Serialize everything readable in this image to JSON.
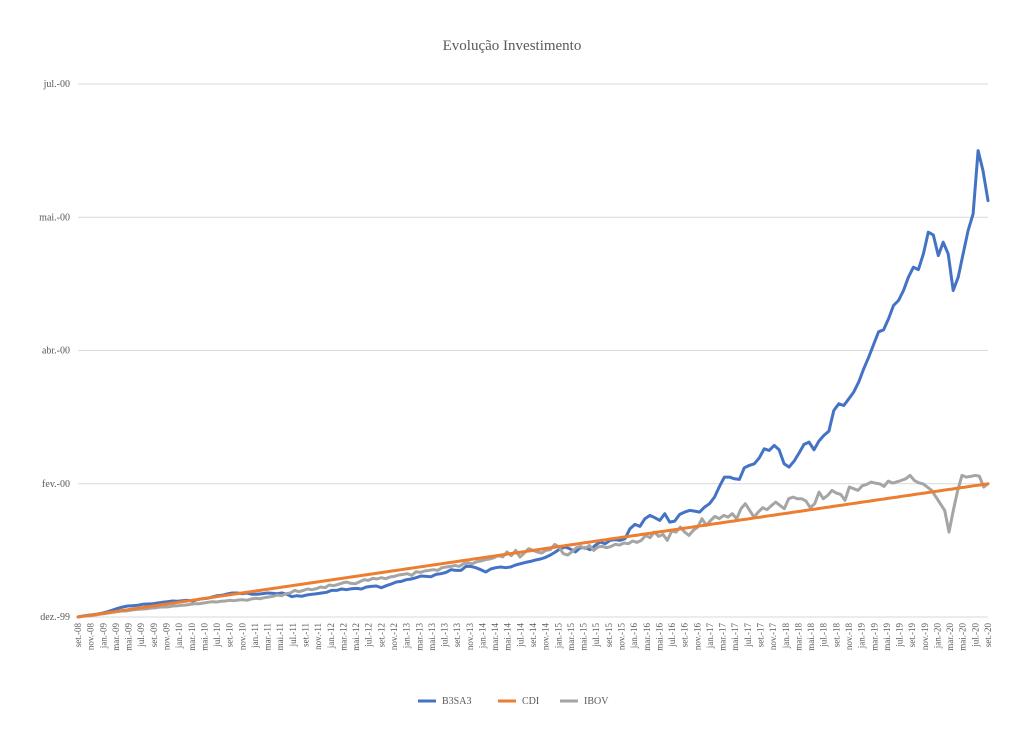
{
  "chart_data": {
    "type": "line",
    "title": "Evolução Investimento",
    "xlabel": "",
    "ylabel": "",
    "y_ticks": [
      "dez.-99",
      "fev.-00",
      "abr.-00",
      "mai.-00",
      "jul.-00"
    ],
    "y_tick_values": [
      0,
      4,
      8,
      12,
      16
    ],
    "ylim": [
      0,
      16
    ],
    "grid": true,
    "legend_position": "bottom",
    "x_tick_labels": [
      "set.-08",
      "nov.-08",
      "jan.-09",
      "mar.-09",
      "mai.-09",
      "jul.-09",
      "set.-09",
      "nov.-09",
      "jan.-10",
      "mar.-10",
      "mai.-10",
      "jul.-10",
      "set.-10",
      "nov.-10",
      "jan.-11",
      "mar.-11",
      "mai.-11",
      "jul.-11",
      "set.-11",
      "nov.-11",
      "jan.-12",
      "mar.-12",
      "mai.-12",
      "jul.-12",
      "set.-12",
      "nov.-12",
      "jan.-13",
      "mar.-13",
      "mai.-13",
      "jul.-13",
      "set.-13",
      "nov.-13",
      "jan.-14",
      "mar.-14",
      "mai.-14",
      "jul.-14",
      "set.-14",
      "nov.-14",
      "jan.-15",
      "mar.-15",
      "mai.-15",
      "jul.-15",
      "set.-15",
      "nov.-15",
      "jan.-16",
      "mar.-16",
      "mai.-16",
      "jul.-16",
      "set.-16",
      "nov.-16",
      "jan.-17",
      "mar.-17",
      "mai.-17",
      "jul.-17",
      "set.-17",
      "nov.-17",
      "jan.-18",
      "mar.-18",
      "mai.-18",
      "jul.-18",
      "set.-18",
      "nov.-18",
      "jan.-19",
      "mar.-19",
      "mai.-19",
      "jul.-19",
      "set.-19",
      "nov.-19",
      "jan.-20",
      "mar.-20",
      "mai.-20",
      "jul.-20",
      "set.-20"
    ],
    "series": [
      {
        "name": "B3SA3",
        "color": "#4472C4",
        "values": [
          0.0,
          0.03,
          0.05,
          0.07,
          0.09,
          0.12,
          0.16,
          0.21,
          0.26,
          0.3,
          0.33,
          0.34,
          0.35,
          0.38,
          0.39,
          0.4,
          0.42,
          0.44,
          0.46,
          0.48,
          0.47,
          0.49,
          0.5,
          0.48,
          0.52,
          0.55,
          0.56,
          0.6,
          0.64,
          0.65,
          0.69,
          0.72,
          0.72,
          0.7,
          0.72,
          0.68,
          0.68,
          0.7,
          0.72,
          0.71,
          0.7,
          0.72,
          0.68,
          0.61,
          0.64,
          0.62,
          0.66,
          0.68,
          0.7,
          0.72,
          0.74,
          0.8,
          0.8,
          0.84,
          0.82,
          0.85,
          0.86,
          0.84,
          0.9,
          0.92,
          0.93,
          0.88,
          0.94,
          0.99,
          1.05,
          1.07,
          1.12,
          1.14,
          1.18,
          1.23,
          1.22,
          1.21,
          1.28,
          1.3,
          1.34,
          1.42,
          1.4,
          1.4,
          1.52,
          1.52,
          1.48,
          1.42,
          1.35,
          1.44,
          1.48,
          1.5,
          1.48,
          1.5,
          1.56,
          1.6,
          1.64,
          1.67,
          1.71,
          1.74,
          1.79,
          1.86,
          1.95,
          2.05,
          2.1,
          2.04,
          1.95,
          2.08,
          2.08,
          2.02,
          2.15,
          2.25,
          2.2,
          2.3,
          2.32,
          2.3,
          2.35,
          2.65,
          2.78,
          2.72,
          2.95,
          3.05,
          2.98,
          2.9,
          3.1,
          2.85,
          2.88,
          3.08,
          3.15,
          3.2,
          3.18,
          3.15,
          3.3,
          3.4,
          3.6,
          3.92,
          4.2,
          4.2,
          4.15,
          4.13,
          4.48,
          4.55,
          4.6,
          4.78,
          5.05,
          5.0,
          5.15,
          5.02,
          4.6,
          4.5,
          4.68,
          4.92,
          5.18,
          5.25,
          5.02,
          5.28,
          5.45,
          5.58,
          6.2,
          6.4,
          6.35,
          6.55,
          6.75,
          7.05,
          7.45,
          7.8,
          8.18,
          8.56,
          8.62,
          8.95,
          9.35,
          9.5,
          9.8,
          10.2,
          10.5,
          10.43,
          10.9,
          11.55,
          11.47,
          10.85,
          11.25,
          10.9,
          9.8,
          10.2,
          10.9,
          11.6,
          12.1,
          14.0,
          13.4,
          12.5
        ]
      },
      {
        "name": "CDI",
        "color": "#ED7D31",
        "values": [
          0.0,
          0.02,
          0.04,
          0.06,
          0.08,
          0.1,
          0.12,
          0.14,
          0.16,
          0.18,
          0.2,
          0.22,
          0.24,
          0.26,
          0.28,
          0.3,
          0.32,
          0.34,
          0.36,
          0.38,
          0.4,
          0.42,
          0.44,
          0.46,
          0.48,
          0.5,
          0.52,
          0.54,
          0.56,
          0.58,
          0.6,
          0.62,
          0.64,
          0.66,
          0.68,
          0.7,
          0.72,
          0.74,
          0.76,
          0.78,
          0.8,
          0.82,
          0.84,
          0.86,
          0.88,
          0.9,
          0.92,
          0.94,
          0.96,
          0.98,
          1.0,
          1.02,
          1.04,
          1.06,
          1.08,
          1.1,
          1.12,
          1.14,
          1.16,
          1.18,
          1.2,
          1.22,
          1.24,
          1.26,
          1.28,
          1.3,
          1.32,
          1.34,
          1.36,
          1.38,
          1.4,
          1.42,
          1.44,
          1.46,
          1.48,
          1.5,
          1.52,
          1.54,
          1.56,
          1.58,
          1.6,
          1.62,
          1.64,
          1.66,
          1.68,
          1.7,
          1.72,
          1.74,
          1.76,
          1.78,
          1.8,
          1.82,
          1.84,
          1.86,
          1.88,
          1.9,
          1.92,
          1.94,
          1.96,
          1.98,
          2.0,
          2.02,
          2.04,
          2.06,
          2.08,
          2.1,
          2.12,
          2.14,
          2.16,
          2.18,
          2.2,
          2.22,
          2.24,
          2.26,
          2.28,
          2.3,
          2.32,
          2.34,
          2.36,
          2.38,
          2.4,
          2.42,
          2.44,
          2.46,
          2.48,
          2.5,
          2.52,
          2.54,
          2.56,
          2.58,
          2.6,
          2.62,
          2.64,
          2.66,
          2.68,
          2.7,
          2.72,
          2.74,
          2.76,
          2.78,
          2.8,
          2.82,
          2.84,
          2.86,
          2.88,
          2.9,
          2.92,
          2.94,
          2.96,
          2.98,
          3.0,
          3.02,
          3.04,
          3.06,
          3.08,
          3.1,
          3.12,
          3.14,
          3.16,
          3.18,
          3.2,
          3.22,
          3.24,
          3.26,
          3.28,
          3.3,
          3.32,
          3.34,
          3.36,
          3.38,
          3.4,
          3.42,
          3.44,
          3.46,
          3.48,
          3.5,
          3.52,
          3.54,
          3.56,
          3.58,
          3.6,
          3.62,
          3.64,
          3.66,
          3.68,
          3.7,
          3.72,
          3.74,
          3.76,
          3.78,
          3.8,
          3.82,
          3.84,
          3.86,
          3.88,
          3.9,
          3.92,
          3.94,
          3.96,
          3.98,
          4.0
        ]
      },
      {
        "name": "IBOV",
        "color": "#A5A5A5",
        "values": [
          0.0,
          0.02,
          0.03,
          0.04,
          0.06,
          0.08,
          0.1,
          0.12,
          0.14,
          0.16,
          0.18,
          0.18,
          0.2,
          0.22,
          0.23,
          0.24,
          0.25,
          0.27,
          0.28,
          0.3,
          0.3,
          0.31,
          0.33,
          0.34,
          0.35,
          0.36,
          0.38,
          0.4,
          0.4,
          0.42,
          0.44,
          0.46,
          0.45,
          0.47,
          0.48,
          0.5,
          0.49,
          0.51,
          0.52,
          0.5,
          0.54,
          0.56,
          0.55,
          0.58,
          0.6,
          0.62,
          0.66,
          0.64,
          0.7,
          0.72,
          0.8,
          0.76,
          0.8,
          0.84,
          0.82,
          0.85,
          0.9,
          0.88,
          0.96,
          0.94,
          0.98,
          1.02,
          1.05,
          1.01,
          1.0,
          1.06,
          1.12,
          1.1,
          1.16,
          1.14,
          1.18,
          1.15,
          1.2,
          1.22,
          1.26,
          1.28,
          1.3,
          1.25,
          1.36,
          1.34,
          1.38,
          1.4,
          1.42,
          1.4,
          1.48,
          1.5,
          1.52,
          1.55,
          1.52,
          1.6,
          1.62,
          1.6,
          1.66,
          1.68,
          1.72,
          1.74,
          1.78,
          1.85,
          1.8,
          1.95,
          1.84,
          2.0,
          1.8,
          1.92,
          2.05,
          2.0,
          1.95,
          1.92,
          2.0,
          2.02,
          2.18,
          2.1,
          1.9,
          1.86,
          1.96,
          2.08,
          2.12,
          2.05,
          2.15,
          2.0,
          2.1,
          2.12,
          2.08,
          2.12,
          2.18,
          2.16,
          2.22,
          2.2,
          2.28,
          2.24,
          2.3,
          2.45,
          2.38,
          2.55,
          2.42,
          2.48,
          2.3,
          2.58,
          2.55,
          2.7,
          2.55,
          2.45,
          2.6,
          2.7,
          2.95,
          2.75,
          2.9,
          3.02,
          2.95,
          3.05,
          3.0,
          3.1,
          2.95,
          3.25,
          3.4,
          3.2,
          3.0,
          3.15,
          3.28,
          3.22,
          3.34,
          3.45,
          3.35,
          3.25,
          3.55,
          3.6,
          3.55,
          3.55,
          3.48,
          3.28,
          3.4,
          3.75,
          3.55,
          3.65,
          3.8,
          3.72,
          3.68,
          3.5,
          3.9,
          3.85,
          3.8,
          3.94,
          3.98,
          4.05,
          4.02,
          4.0,
          3.92,
          4.08,
          4.02,
          4.06,
          4.1,
          4.15,
          4.25,
          4.1,
          4.03,
          4.0,
          3.9,
          3.8,
          3.6,
          3.4,
          3.2,
          2.55,
          3.2,
          3.8,
          4.25,
          4.2,
          4.22,
          4.25,
          4.23,
          3.9,
          4.0
        ]
      }
    ]
  }
}
